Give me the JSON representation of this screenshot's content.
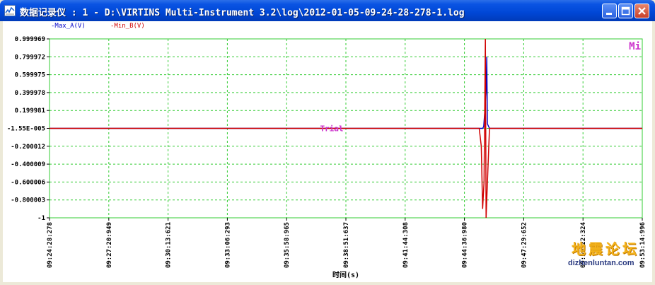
{
  "window": {
    "title": "数据记录仪 : 1 - D:\\VIRTINS Multi-Instrument 3.2\\log\\2012-01-05-09-24-28-278-1.log",
    "icon": "chart-window-icon",
    "buttons": [
      "minimize-icon",
      "maximize-icon",
      "close-icon"
    ]
  },
  "chart_data": {
    "type": "line",
    "title": "",
    "xlabel": "时间(s)",
    "ylabel": "",
    "legend": [
      "-Max_A(V)",
      "-Min_B(V)"
    ],
    "corner_label": "Mi",
    "annotation": "Trial",
    "grid": true,
    "ylim": [
      -1,
      0.999969
    ],
    "y_ticks": [
      "0.999969",
      "0.799972",
      "0.599975",
      "0.399978",
      "0.199981",
      "-1.55E-005",
      "-0.200012",
      "-0.400009",
      "-0.600006",
      "-0.800003",
      "-1"
    ],
    "x_ticks": [
      "09:24:28:278",
      "09:27:20:949",
      "09:30:13:621",
      "09:33:06:293",
      "09:35:58:965",
      "09:38:51:637",
      "09:41:44:308",
      "09:44:36:980",
      "09:47:29:652",
      "09:50:22:324",
      "09:53:14:996"
    ],
    "series": [
      {
        "name": "-Max_A(V)",
        "color": "#0000c8",
        "points": [
          {
            "t": "09:24:28:278",
            "v": 0
          },
          {
            "t": "09:45:30",
            "v": 0
          },
          {
            "t": "09:45:33",
            "v": 0.02
          },
          {
            "t": "09:45:40",
            "v": 0.4
          },
          {
            "t": "09:45:42",
            "v": 0.8
          },
          {
            "t": "09:45:44",
            "v": 0.05
          },
          {
            "t": "09:45:50",
            "v": 0
          },
          {
            "t": "09:53:14:996",
            "v": 0
          }
        ]
      },
      {
        "name": "-Min_B(V)",
        "color": "#d00000",
        "points": [
          {
            "t": "09:24:28:278",
            "v": 0
          },
          {
            "t": "09:45:20",
            "v": 0
          },
          {
            "t": "09:45:26",
            "v": -0.2
          },
          {
            "t": "09:45:30",
            "v": -0.9
          },
          {
            "t": "09:45:34",
            "v": -0.6
          },
          {
            "t": "09:45:38",
            "v": 0.999969
          },
          {
            "t": "09:45:40",
            "v": -1
          },
          {
            "t": "09:45:44",
            "v": -0.6
          },
          {
            "t": "09:45:50",
            "v": 0
          },
          {
            "t": "09:53:14:996",
            "v": 0
          }
        ]
      }
    ]
  },
  "watermark": {
    "title": "地震论坛",
    "url": "dizhenluntan.com"
  }
}
